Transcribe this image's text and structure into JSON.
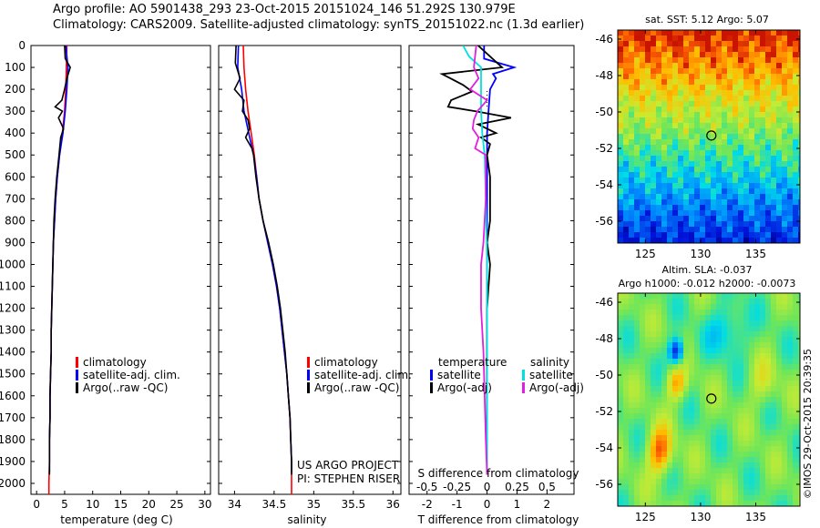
{
  "header": {
    "line1": "Argo profile: AO 5901438_293 23-Oct-2015 20151024_146 51.292S 130.979E",
    "line2": "Climatology: CARS2009. Satellite-adjusted climatology: synTS_20151022.nc (1.3d earlier)"
  },
  "depth_ticks": [
    "0",
    "100",
    "200",
    "300",
    "400",
    "500",
    "600",
    "700",
    "800",
    "900",
    "1000",
    "1100",
    "1200",
    "1300",
    "1400",
    "1500",
    "1600",
    "1700",
    "1800",
    "1900",
    "2000"
  ],
  "colors": {
    "climatology": "#ff0000",
    "satellite": "#0000ff",
    "argo": "#000000",
    "sal_satellite": "#00e0e0",
    "sal_argo": "#e020e0"
  },
  "panels": {
    "temperature": {
      "xlabel": "temperature (deg C)",
      "xticks": [
        "0",
        "5",
        "10",
        "15",
        "20",
        "25",
        "30"
      ],
      "legend": [
        "climatology",
        "satellite-adj. clim.",
        "Argo(..raw -QC)"
      ]
    },
    "salinity": {
      "xlabel": "salinity",
      "xticks": [
        "34",
        "34.5",
        "35",
        "35.5",
        "36"
      ],
      "legend": [
        "climatology",
        "satellite-adj. clim.",
        "Argo(..raw -QC)"
      ],
      "credit1": "US ARGO PROJECT",
      "credit2": "PI: STEPHEN RISER"
    },
    "difference": {
      "xlabel": "T difference from climatology",
      "top_label": "S difference from climatology",
      "xticks_t": [
        "-2",
        "-1",
        "0",
        "1",
        "2"
      ],
      "xticks_s": [
        "-0.5",
        "-0.25",
        "0",
        "0.25",
        "0.5"
      ],
      "legend_t_title": "temperature",
      "legend_s_title": "salinity",
      "legend_t": [
        "satellite",
        "Argo(-adj)"
      ],
      "legend_s": [
        "satellite",
        "Argo(-adj)"
      ]
    },
    "sst_map": {
      "title": "sat. SST: 5.12 Argo: 5.07",
      "yticks": [
        "-46",
        "-48",
        "-50",
        "-52",
        "-54",
        "-56"
      ],
      "xticks": [
        "125",
        "130",
        "135"
      ]
    },
    "sla_map": {
      "title1": "Altim. SLA: -0.037",
      "title2": "Argo h1000: -0.012 h2000: -0.0073",
      "yticks": [
        "-46",
        "-48",
        "-50",
        "-52",
        "-54",
        "-56"
      ],
      "xticks": [
        "125",
        "130",
        "135"
      ]
    },
    "stamp": "©IMOS 29-Oct-2015 20:39:35"
  },
  "chart_data": [
    {
      "type": "line",
      "xlabel": "temperature (deg C)",
      "ylabel": "",
      "xlim": [
        -1,
        31
      ],
      "ylim": [
        2050,
        0
      ],
      "series": [
        {
          "name": "climatology",
          "depth": [
            0,
            100,
            200,
            300,
            400,
            500,
            600,
            700,
            800,
            900,
            1000,
            1100,
            1200,
            1300,
            1400,
            1500,
            1600,
            1700,
            1800,
            1900,
            2000,
            2050
          ],
          "values": [
            5.4,
            5.3,
            5.2,
            5.0,
            4.6,
            4.1,
            3.7,
            3.4,
            3.2,
            3.0,
            2.9,
            2.8,
            2.7,
            2.6,
            2.6,
            2.5,
            2.4,
            2.4,
            2.3,
            2.3,
            2.2,
            2.2
          ]
        },
        {
          "name": "satellite-adj. clim.",
          "depth": [
            0,
            100,
            200,
            300,
            400,
            500,
            600,
            700,
            800,
            900,
            1000,
            1100,
            1200,
            1300,
            1400,
            1500,
            1600,
            1700,
            1800,
            1900,
            1950
          ],
          "values": [
            5.2,
            5.6,
            5.4,
            5.1,
            4.7,
            4.1,
            3.7,
            3.4,
            3.2,
            3.0,
            2.9,
            2.8,
            2.7,
            2.6,
            2.6,
            2.5,
            2.4,
            2.4,
            2.3,
            2.3,
            2.3
          ]
        },
        {
          "name": "Argo(..raw -QC)",
          "depth": [
            0,
            60,
            100,
            150,
            200,
            250,
            280,
            300,
            330,
            380,
            420,
            500,
            600,
            700,
            800,
            900,
            1000,
            1100,
            1200,
            1300,
            1400,
            1500,
            1600,
            1700,
            1800,
            1900,
            1960
          ],
          "values": [
            5.0,
            5.1,
            6.0,
            5.4,
            5.0,
            4.5,
            3.3,
            4.6,
            3.9,
            4.8,
            4.3,
            4.0,
            3.6,
            3.3,
            3.1,
            3.0,
            2.9,
            2.8,
            2.7,
            2.6,
            2.6,
            2.5,
            2.4,
            2.4,
            2.3,
            2.3,
            2.3
          ]
        }
      ]
    },
    {
      "type": "line",
      "xlabel": "salinity",
      "ylabel": "",
      "xlim": [
        33.8,
        36.1
      ],
      "ylim": [
        2050,
        0
      ],
      "series": [
        {
          "name": "climatology",
          "depth": [
            0,
            100,
            200,
            300,
            400,
            500,
            600,
            700,
            800,
            900,
            1000,
            1100,
            1200,
            1300,
            1400,
            1500,
            1600,
            1700,
            1800,
            1900,
            2000,
            2050
          ],
          "values": [
            34.11,
            34.12,
            34.14,
            34.17,
            34.21,
            34.25,
            34.28,
            34.31,
            34.36,
            34.42,
            34.48,
            34.53,
            34.57,
            34.6,
            34.63,
            34.66,
            34.68,
            34.7,
            34.71,
            34.72,
            34.72,
            34.72
          ]
        },
        {
          "name": "satellite-adj. clim.",
          "depth": [
            0,
            100,
            200,
            300,
            400,
            500,
            600,
            700,
            800,
            900,
            1000,
            1100,
            1200,
            1300,
            1400,
            1500,
            1600,
            1700,
            1800,
            1900,
            1950
          ],
          "values": [
            34.05,
            34.04,
            34.09,
            34.12,
            34.18,
            34.24,
            34.28,
            34.31,
            34.36,
            34.42,
            34.48,
            34.53,
            34.57,
            34.6,
            34.63,
            34.66,
            34.68,
            34.7,
            34.71,
            34.72,
            34.72
          ]
        },
        {
          "name": "Argo(..raw -QC)",
          "depth": [
            0,
            80,
            150,
            200,
            250,
            300,
            340,
            380,
            420,
            470,
            500,
            600,
            700,
            800,
            900,
            1000,
            1100,
            1200,
            1300,
            1400,
            1500,
            1600,
            1700,
            1800,
            1900,
            1960
          ],
          "values": [
            34.02,
            34.01,
            34.07,
            34.0,
            34.12,
            34.1,
            34.17,
            34.19,
            34.14,
            34.22,
            34.24,
            34.27,
            34.31,
            34.36,
            34.43,
            34.49,
            34.54,
            34.58,
            34.61,
            34.64,
            34.66,
            34.68,
            34.7,
            34.71,
            34.72,
            34.72
          ]
        }
      ]
    },
    {
      "type": "line",
      "xlabel": "T difference from climatology",
      "ylabel": "",
      "xlim": [
        -2.6,
        2.9
      ],
      "ylim": [
        2050,
        0
      ],
      "series": [
        {
          "name": "temperature satellite",
          "depth": [
            0,
            60,
            80,
            100,
            130,
            150,
            200,
            300,
            400,
            500,
            700,
            1000,
            1300,
            1600,
            1950
          ],
          "values": [
            -0.1,
            -0.1,
            0.4,
            0.9,
            0.2,
            0.3,
            0.1,
            0.05,
            0.0,
            0.0,
            0.0,
            0.0,
            0.0,
            0.0,
            0.0
          ]
        },
        {
          "name": "temperature Argo(-adj)",
          "depth": [
            0,
            100,
            130,
            180,
            210,
            250,
            280,
            300,
            330,
            360,
            400,
            420,
            450,
            500,
            600,
            700,
            800,
            900,
            1000,
            1200,
            1400,
            1600,
            1800,
            1960
          ],
          "values": [
            -0.3,
            0.5,
            -1.5,
            -0.8,
            -0.5,
            -1.2,
            -1.3,
            -0.4,
            0.8,
            -0.3,
            0.3,
            -0.2,
            0.1,
            0.0,
            0.1,
            0.1,
            0.1,
            0.0,
            0.1,
            0.0,
            0.0,
            0.0,
            0.0,
            0.0
          ]
        },
        {
          "name": "salinity satellite",
          "depth": [
            0,
            50,
            100,
            200,
            300,
            400,
            500,
            700,
            1000,
            1300,
            1600,
            1950
          ],
          "values": [
            -0.2,
            -0.15,
            -0.05,
            -0.05,
            -0.05,
            -0.04,
            -0.02,
            -0.01,
            0.0,
            0.0,
            0.0,
            0.0
          ]
        },
        {
          "name": "salinity Argo(-adj)",
          "depth": [
            0,
            100,
            150,
            200,
            250,
            300,
            340,
            380,
            420,
            470,
            500,
            600,
            700,
            800,
            900,
            1000,
            1200,
            1400,
            1600,
            1800,
            1960
          ],
          "values": [
            -0.09,
            -0.11,
            -0.07,
            -0.14,
            0.0,
            -0.08,
            -0.11,
            -0.12,
            -0.07,
            -0.1,
            -0.01,
            -0.01,
            -0.01,
            -0.02,
            -0.03,
            -0.05,
            -0.05,
            -0.03,
            -0.02,
            -0.01,
            0.0
          ]
        }
      ]
    },
    {
      "type": "heatmap",
      "title": "sat. SST: 5.12 Argo: 5.07",
      "xlim": [
        122.5,
        139
      ],
      "ylim": [
        -57.2,
        -45.5
      ],
      "xticks": [
        125,
        130,
        135
      ],
      "yticks": [
        -46,
        -48,
        -50,
        -52,
        -54,
        -56
      ],
      "argo_position": [
        130.979,
        -51.292
      ]
    },
    {
      "type": "heatmap",
      "title": "Altim. SLA: -0.037",
      "xlim": [
        122.5,
        139
      ],
      "ylim": [
        -57.2,
        -45.5
      ],
      "xticks": [
        125,
        130,
        135
      ],
      "yticks": [
        -46,
        -48,
        -50,
        -52,
        -54,
        -56
      ],
      "argo_position": [
        130.979,
        -51.292
      ]
    }
  ]
}
